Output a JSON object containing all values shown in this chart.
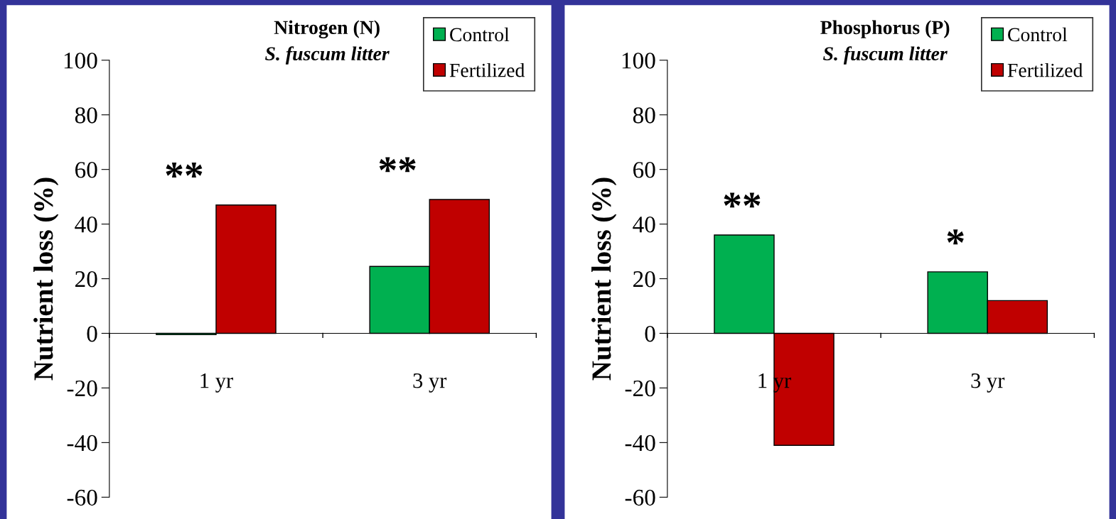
{
  "chart_data": [
    {
      "type": "bar",
      "title": "Nitrogen (N)",
      "subtitle": "S. fuscum litter",
      "ylabel": "Nutrient loss (%)",
      "categories": [
        "1 yr",
        "3 yr"
      ],
      "series": [
        {
          "name": "Control",
          "color": "#00b050",
          "values": [
            -0.5,
            24.5
          ]
        },
        {
          "name": "Fertilized",
          "color": "#c00000",
          "values": [
            47,
            49
          ]
        }
      ],
      "ylim": [
        -60,
        100
      ],
      "yticks": [
        -60,
        -40,
        -20,
        0,
        20,
        40,
        60,
        80,
        100
      ],
      "grid": false,
      "legend": "top right",
      "annotations": [
        "**",
        "**"
      ]
    },
    {
      "type": "bar",
      "title": "Phosphorus (P)",
      "subtitle": "S. fuscum litter",
      "ylabel": "Nutrient loss (%)",
      "categories": [
        "1 yr",
        "3 yr"
      ],
      "series": [
        {
          "name": "Control",
          "color": "#00b050",
          "values": [
            36,
            22.5
          ]
        },
        {
          "name": "Fertilized",
          "color": "#c00000",
          "values": [
            -41,
            12
          ]
        }
      ],
      "ylim": [
        -60,
        100
      ],
      "yticks": [
        -60,
        -40,
        -20,
        0,
        20,
        40,
        60,
        80,
        100
      ],
      "grid": false,
      "legend": "top right",
      "annotations": [
        "**",
        "*"
      ]
    }
  ]
}
